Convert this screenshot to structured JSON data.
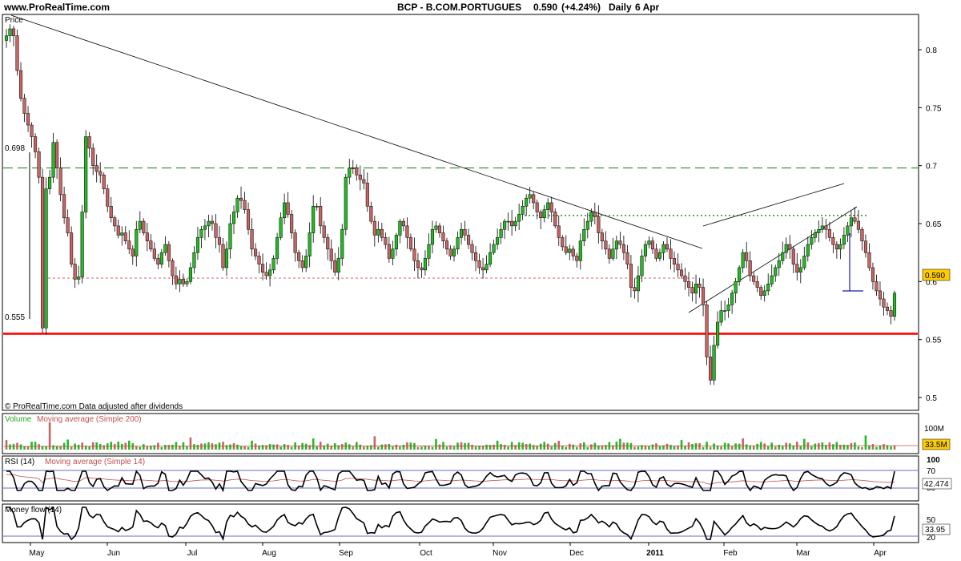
{
  "header": {
    "site": "www.ProRealTime.com",
    "instrument": "BCP - B.COM.PORTUGUES",
    "last": "0.590",
    "change": "(+4.24%)",
    "period": "Daily",
    "date": "6 Apr"
  },
  "colors": {
    "up": "#22bb22",
    "down": "#c86464",
    "support": "#ff0000",
    "green_dash": "#2b8a2b",
    "dotted_red": "#cc6666",
    "grid_blue": "#3a3aaa",
    "tag_bg": "#ffcc00"
  },
  "panels": {
    "price": {
      "label": "Price",
      "footnote": "© ProRealTime.com Data adjusted after dividends",
      "yticks": [
        "0.8",
        "0.75",
        "0.7",
        "0.65",
        "0.6",
        "0.55",
        "0.5"
      ],
      "level_labels": {
        "resistance": "0.698",
        "support": "0.555"
      },
      "last_tag": "0.590"
    },
    "volume": {
      "label_volume": "Volume",
      "label_ma": "Moving average (Simple 200)",
      "ytick": "100M",
      "last_tag": "33.5M"
    },
    "rsi": {
      "label_rsi": "RSI (14)",
      "label_ma": "Moving average (Simple 14)",
      "yticks": [
        "100",
        "70",
        "30"
      ],
      "last_tag": "42.474"
    },
    "mfi": {
      "label": "Money flow (14)",
      "yticks": [
        "50",
        "20"
      ],
      "last_tag": "33.95"
    }
  },
  "xaxis": {
    "labels": [
      "May",
      "Jun",
      "Jul",
      "Aug",
      "Sep",
      "Oct",
      "Nov",
      "Dec",
      "2011",
      "Feb",
      "Mar",
      "Apr"
    ]
  },
  "chart_data": {
    "type": "candlestick",
    "instrument": "BCP - B.COM.PORTUGUES",
    "period": "Daily",
    "last_close": 0.59,
    "change_pct": 4.24,
    "ylim": [
      0.49,
      0.835
    ],
    "horizontal_levels": [
      {
        "value": 0.698,
        "style": "dashed",
        "color": "green"
      },
      {
        "value": 0.657,
        "style": "dotted",
        "color": "green"
      },
      {
        "value": 0.603,
        "style": "dotted",
        "color": "red"
      },
      {
        "value": 0.555,
        "style": "solid",
        "color": "red"
      }
    ],
    "trendlines": [
      {
        "from": [
          "Apr 28",
          0.833
        ],
        "to": [
          "Jan 12",
          0.617
        ]
      },
      {
        "from": [
          "Jan 14",
          0.56
        ],
        "to": [
          "Mar 25",
          0.645
        ]
      },
      {
        "from": [
          "Jan 14",
          0.632
        ],
        "to": [
          "Mar 29",
          0.668
        ]
      }
    ],
    "closes": [
      0.812,
      0.818,
      0.812,
      0.782,
      0.758,
      0.745,
      0.735,
      0.725,
      0.712,
      0.69,
      0.56,
      0.68,
      0.69,
      0.72,
      0.698,
      0.675,
      0.655,
      0.642,
      0.615,
      0.602,
      0.604,
      0.66,
      0.725,
      0.715,
      0.7,
      0.695,
      0.692,
      0.68,
      0.665,
      0.655,
      0.648,
      0.64,
      0.642,
      0.635,
      0.628,
      0.622,
      0.645,
      0.652,
      0.642,
      0.635,
      0.628,
      0.62,
      0.615,
      0.625,
      0.632,
      0.618,
      0.605,
      0.598,
      0.602,
      0.598,
      0.6,
      0.612,
      0.625,
      0.638,
      0.645,
      0.648,
      0.652,
      0.65,
      0.638,
      0.632,
      0.612,
      0.628,
      0.65,
      0.66,
      0.672,
      0.67,
      0.662,
      0.645,
      0.628,
      0.622,
      0.615,
      0.608,
      0.605,
      0.61,
      0.62,
      0.638,
      0.655,
      0.668,
      0.658,
      0.642,
      0.625,
      0.618,
      0.612,
      0.622,
      0.642,
      0.665,
      0.665,
      0.648,
      0.638,
      0.628,
      0.618,
      0.608,
      0.62,
      0.645,
      0.69,
      0.698,
      0.698,
      0.692,
      0.688,
      0.685,
      0.665,
      0.652,
      0.64,
      0.645,
      0.638,
      0.632,
      0.62,
      0.628,
      0.64,
      0.652,
      0.648,
      0.638,
      0.628,
      0.618,
      0.612,
      0.61,
      0.62,
      0.632,
      0.645,
      0.648,
      0.642,
      0.635,
      0.628,
      0.622,
      0.628,
      0.638,
      0.645,
      0.64,
      0.632,
      0.625,
      0.618,
      0.612,
      0.61,
      0.615,
      0.625,
      0.632,
      0.638,
      0.645,
      0.652,
      0.652,
      0.648,
      0.652,
      0.658,
      0.665,
      0.672,
      0.675,
      0.668,
      0.66,
      0.655,
      0.662,
      0.668,
      0.66,
      0.648,
      0.638,
      0.63,
      0.625,
      0.628,
      0.622,
      0.618,
      0.635,
      0.645,
      0.652,
      0.66,
      0.656,
      0.642,
      0.635,
      0.628,
      0.62,
      0.628,
      0.635,
      0.632,
      0.625,
      0.615,
      0.595,
      0.592,
      0.605,
      0.622,
      0.632,
      0.635,
      0.628,
      0.62,
      0.625,
      0.632,
      0.628,
      0.62,
      0.615,
      0.61,
      0.605,
      0.6,
      0.595,
      0.59,
      0.598,
      0.595,
      0.58,
      0.535,
      0.515,
      0.545,
      0.565,
      0.575,
      0.575,
      0.58,
      0.59,
      0.6,
      0.612,
      0.625,
      0.618,
      0.605,
      0.6,
      0.595,
      0.588,
      0.592,
      0.598,
      0.605,
      0.612,
      0.618,
      0.625,
      0.632,
      0.628,
      0.615,
      0.608,
      0.612,
      0.622,
      0.632,
      0.638,
      0.642,
      0.645,
      0.648,
      0.645,
      0.638,
      0.632,
      0.628,
      0.632,
      0.64,
      0.648,
      0.655,
      0.652,
      0.645,
      0.635,
      0.625,
      0.612,
      0.6,
      0.592,
      0.585,
      0.578,
      0.575,
      0.57,
      0.59
    ]
  }
}
